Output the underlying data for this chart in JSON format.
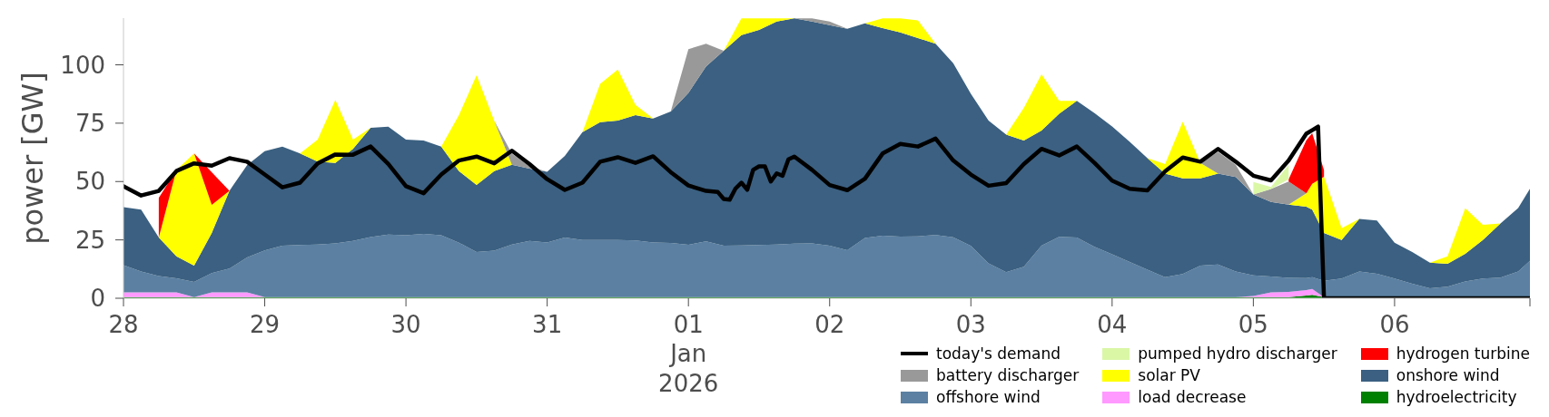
{
  "chart_data": {
    "type": "area",
    "stacked": true,
    "ylabel": "power [GW]",
    "legend": "bottom right",
    "xlim": [
      "2025-12-28T00:00",
      "2026-01-06T23:00"
    ],
    "xticks": [
      {
        "value": "2025-12-28",
        "label": "28"
      },
      {
        "value": "2025-12-29",
        "label": "29"
      },
      {
        "value": "2025-12-30",
        "label": "30"
      },
      {
        "value": "2025-12-31",
        "label": "31"
      },
      {
        "value": "2026-01-01",
        "label": "01\nJan\n2026"
      },
      {
        "value": "2026-01-02",
        "label": "02"
      },
      {
        "value": "2026-01-03",
        "label": "03"
      },
      {
        "value": "2026-01-04",
        "label": "04"
      },
      {
        "value": "2026-01-05",
        "label": "05"
      },
      {
        "value": "2026-01-06",
        "label": "06"
      },
      {
        "value": "2026-01-06T23:00",
        "label": null
      }
    ],
    "ylim": [
      0,
      120
    ],
    "yticks": [
      0,
      25,
      50,
      75,
      100
    ],
    "x": [
      "2025-12-28T00:00",
      "2025-12-28T03:00",
      "2025-12-28T06:00",
      "2025-12-28T09:00",
      "2025-12-28T12:00",
      "2025-12-28T15:00",
      "2025-12-28T18:00",
      "2025-12-28T21:00",
      "2025-12-29T00:00",
      "2025-12-29T03:00",
      "2025-12-29T06:00",
      "2025-12-29T09:00",
      "2025-12-29T12:00",
      "2025-12-29T15:00",
      "2025-12-29T18:00",
      "2025-12-29T21:00",
      "2025-12-30T00:00",
      "2025-12-30T03:00",
      "2025-12-30T06:00",
      "2025-12-30T09:00",
      "2025-12-30T12:00",
      "2025-12-30T15:00",
      "2025-12-30T18:00",
      "2025-12-30T21:00",
      "2025-12-31T00:00",
      "2025-12-31T03:00",
      "2025-12-31T06:00",
      "2025-12-31T09:00",
      "2025-12-31T12:00",
      "2025-12-31T15:00",
      "2025-12-31T18:00",
      "2025-12-31T21:00",
      "2026-01-01T00:00",
      "2026-01-01T03:00",
      "2026-01-01T06:00",
      "2026-01-01T09:00",
      "2026-01-01T12:00",
      "2026-01-01T15:00",
      "2026-01-01T18:00",
      "2026-01-01T21:00",
      "2026-01-02T00:00",
      "2026-01-02T03:00",
      "2026-01-02T06:00",
      "2026-01-02T09:00",
      "2026-01-02T12:00",
      "2026-01-02T15:00",
      "2026-01-02T18:00",
      "2026-01-02T21:00",
      "2026-01-03T00:00",
      "2026-01-03T03:00",
      "2026-01-03T06:00",
      "2026-01-03T09:00",
      "2026-01-03T12:00",
      "2026-01-03T15:00",
      "2026-01-03T18:00",
      "2026-01-03T21:00",
      "2026-01-04T00:00",
      "2026-01-04T03:00",
      "2026-01-04T06:00",
      "2026-01-04T09:00",
      "2026-01-04T12:00",
      "2026-01-04T15:00",
      "2026-01-04T18:00",
      "2026-01-04T21:00",
      "2026-01-05T00:00",
      "2026-01-05T03:00",
      "2026-01-05T06:00",
      "2026-01-05T09:00",
      "2026-01-05T10:00",
      "2026-01-05T12:00",
      "2026-01-05T15:00",
      "2026-01-05T18:00",
      "2026-01-05T21:00",
      "2026-01-06T00:00",
      "2026-01-06T03:00",
      "2026-01-06T06:00",
      "2026-01-06T09:00",
      "2026-01-06T12:00",
      "2026-01-06T15:00",
      "2026-01-06T18:00",
      "2026-01-06T21:00",
      "2026-01-06T23:00"
    ],
    "series": [
      {
        "name": "hydroelectricity",
        "color": "#008000",
        "values": [
          0.5,
          0.5,
          0.5,
          0.5,
          0.5,
          0.5,
          0.5,
          0.5,
          0.5,
          0.5,
          0.5,
          0.5,
          0.5,
          0.5,
          0.5,
          0.5,
          0.5,
          0.5,
          0.5,
          0.5,
          0.5,
          0.5,
          0.5,
          0.5,
          0.5,
          0.5,
          0.5,
          0.5,
          0.5,
          0.5,
          0.5,
          0.5,
          0.5,
          0.5,
          0.5,
          0.5,
          0.5,
          0.5,
          0.5,
          0.5,
          0.5,
          0.5,
          0.5,
          0.5,
          0.5,
          0.5,
          0.5,
          0.5,
          0.5,
          0.5,
          0.5,
          0.5,
          0.5,
          0.5,
          0.5,
          0.5,
          0.5,
          0.5,
          0.5,
          0.5,
          0.5,
          0.5,
          0.5,
          0.5,
          0.5,
          0.5,
          0.5,
          1.2,
          1.5,
          0.5,
          0.5,
          0.5,
          0.5,
          0.5,
          0.5,
          0.5,
          0.5,
          0.5,
          0.5,
          0.5,
          0.5,
          0.5
        ]
      },
      {
        "name": "load decrease",
        "color": "#ff99ff",
        "values": [
          2,
          2,
          2,
          2,
          0,
          2,
          2,
          2,
          0,
          0,
          0,
          0,
          0,
          0,
          0,
          0,
          0,
          0,
          0,
          0,
          0,
          0,
          0,
          0,
          0,
          0,
          0,
          0,
          0,
          0,
          0,
          0,
          0,
          0,
          0,
          0,
          0,
          0,
          0,
          0,
          0,
          0,
          0,
          0,
          0,
          0,
          0,
          0,
          0,
          0,
          0,
          0,
          0,
          0,
          0,
          0,
          0,
          0,
          0,
          0,
          0,
          0,
          0,
          0,
          0.5,
          2,
          2.2,
          2.3,
          2.5,
          0,
          0,
          0,
          0,
          0,
          0,
          0,
          0,
          0,
          0,
          0,
          0,
          0
        ]
      },
      {
        "name": "offshore wind",
        "color": "#5b80a2",
        "values": [
          11.7,
          9,
          7,
          6,
          6.5,
          8.3,
          10.2,
          15,
          20,
          22,
          22.3,
          22.5,
          23,
          24.1,
          25.7,
          26.8,
          26.5,
          27.1,
          26.5,
          23.3,
          19.3,
          19.9,
          22.5,
          24.1,
          23.4,
          25.5,
          24.5,
          24.5,
          24.5,
          24.3,
          23.4,
          23.2,
          22.4,
          23.9,
          22,
          22.1,
          22.3,
          22.5,
          22.9,
          23,
          22,
          20.1,
          25.3,
          26.3,
          25.9,
          26,
          26.6,
          25.6,
          21.9,
          14.5,
          10.7,
          13,
          22,
          25.8,
          25.5,
          21.5,
          18.3,
          15,
          11.7,
          8.5,
          9.9,
          13.5,
          14,
          11,
          8.8,
          6.8,
          6,
          5.1,
          5,
          7,
          7.9,
          11,
          10,
          7.9,
          5.7,
          3.8,
          4.5,
          6.7,
          7.9,
          8.3,
          11,
          15.5
        ]
      },
      {
        "name": "onshore wind",
        "color": "#3b6081",
        "values": [
          24.8,
          26.5,
          16.5,
          9.5,
          7,
          17.2,
          33.3,
          39.5,
          42.5,
          42.5,
          39.2,
          35.5,
          34.5,
          39.4,
          46.8,
          46.2,
          41,
          40,
          38,
          30.7,
          28.7,
          34.1,
          34.2,
          30.9,
          30.3,
          35,
          46.2,
          50.4,
          51.1,
          53.6,
          53.1,
          56.3,
          65.1,
          74.9,
          83.5,
          90.1,
          92.2,
          95.5,
          96.5,
          95,
          94.5,
          94.8,
          92,
          88.9,
          87.5,
          85,
          81.9,
          74.6,
          65.2,
          61.1,
          58.9,
          54.1,
          49.3,
          52.7,
          58.6,
          57.3,
          54.8,
          51.5,
          47.8,
          44.4,
          41,
          37.4,
          38.9,
          40.4,
          34.7,
          32,
          31.4,
          30.6,
          29,
          20.5,
          16.6,
          22.5,
          22.8,
          15.4,
          13.6,
          10.9,
          9.8,
          11.8,
          16.6,
          23.2,
          27.1,
          30.9
        ]
      },
      {
        "name": "solar PV",
        "color": "#ffff00",
        "values": [
          0,
          0,
          0,
          37,
          48,
          12,
          0,
          0,
          0,
          0,
          0,
          9.5,
          27,
          4,
          0,
          0,
          0,
          0,
          0,
          23.9,
          47,
          21.5,
          0,
          0,
          0,
          0,
          0,
          16.4,
          21.9,
          4.4,
          0,
          0,
          0,
          0,
          0,
          7.2,
          4.9,
          1.4,
          0,
          0,
          0,
          0,
          0,
          4.2,
          6,
          7.5,
          0,
          0,
          0,
          0,
          0,
          14,
          24.1,
          5.6,
          0,
          0,
          0,
          0,
          0,
          4.1,
          24.2,
          6.6,
          0,
          0,
          0,
          0,
          0,
          5.8,
          11,
          24,
          5,
          0,
          0,
          0,
          0,
          0,
          3.2,
          19.5,
          6.5,
          0,
          0,
          0
        ]
      },
      {
        "name": "battery discharger",
        "color": "#999999",
        "values": [
          0,
          0,
          0,
          0,
          0,
          0,
          0,
          0,
          0,
          0,
          0,
          0,
          0,
          0,
          0,
          0,
          0,
          0,
          0,
          0,
          0,
          0,
          4.7,
          1,
          0,
          0,
          0,
          0,
          0,
          0,
          0,
          0,
          18.7,
          9.7,
          0,
          0,
          0,
          0,
          0,
          1.4,
          1.5,
          0,
          0,
          0,
          0,
          0,
          0,
          0,
          0,
          0,
          0,
          0,
          0,
          0,
          0,
          0,
          0,
          0,
          0,
          0,
          0,
          0,
          9.3,
          5.3,
          0,
          5.5,
          9.9,
          0,
          0,
          0,
          0,
          0,
          0,
          0,
          0,
          0,
          0,
          0,
          0,
          0,
          0,
          0
        ]
      },
      {
        "name": "hydrogen turbine",
        "color": "#ff0000",
        "values": [
          null,
          null,
          17,
          0,
          0,
          14,
          0,
          null,
          null,
          null,
          null,
          null,
          null,
          null,
          null,
          null,
          null,
          null,
          null,
          null,
          null,
          null,
          null,
          null,
          null,
          null,
          null,
          null,
          null,
          null,
          null,
          null,
          null,
          null,
          null,
          null,
          null,
          null,
          null,
          null,
          null,
          null,
          null,
          null,
          null,
          null,
          null,
          null,
          null,
          null,
          null,
          null,
          null,
          null,
          null,
          null,
          null,
          null,
          null,
          null,
          null,
          null,
          null,
          null,
          null,
          null,
          1,
          22.7,
          21.7,
          3,
          null,
          null,
          null,
          null,
          null,
          null,
          null,
          null,
          null,
          null,
          null,
          null
        ]
      },
      {
        "name": "pumped hydro discharger",
        "color": "#daf7a6",
        "values": [
          null,
          null,
          null,
          null,
          null,
          null,
          null,
          null,
          null,
          null,
          null,
          null,
          null,
          null,
          null,
          null,
          null,
          null,
          null,
          null,
          null,
          null,
          null,
          null,
          null,
          null,
          null,
          null,
          null,
          null,
          null,
          null,
          null,
          null,
          null,
          null,
          null,
          null,
          null,
          null,
          null,
          null,
          null,
          null,
          null,
          null,
          null,
          null,
          null,
          null,
          null,
          null,
          null,
          null,
          null,
          null,
          null,
          null,
          null,
          null,
          null,
          null,
          null,
          null,
          5.3,
          0.9,
          6.2,
          null,
          null,
          null,
          null,
          null,
          null,
          null,
          null,
          null,
          null,
          null,
          null,
          null,
          null,
          null
        ]
      },
      {
        "name": "today's demand",
        "type": "line",
        "color": "#000000",
        "x": [
          "2025-12-28T00:00",
          "2025-12-28T03:00",
          "2025-12-28T06:00",
          "2025-12-28T09:00",
          "2025-12-28T12:00",
          "2025-12-28T15:00",
          "2025-12-28T18:00",
          "2025-12-28T21:00",
          "2025-12-29T00:00",
          "2025-12-29T03:00",
          "2025-12-29T06:00",
          "2025-12-29T09:00",
          "2025-12-29T12:00",
          "2025-12-29T15:00",
          "2025-12-29T18:00",
          "2025-12-29T21:00",
          "2025-12-30T00:00",
          "2025-12-30T03:00",
          "2025-12-30T06:00",
          "2025-12-30T09:00",
          "2025-12-30T12:00",
          "2025-12-30T15:00",
          "2025-12-30T18:00",
          "2025-12-30T21:00",
          "2025-12-31T00:00",
          "2025-12-31T03:00",
          "2025-12-31T06:00",
          "2025-12-31T09:00",
          "2025-12-31T12:00",
          "2025-12-31T15:00",
          "2025-12-31T18:00",
          "2025-12-31T21:00",
          "2026-01-01T00:00",
          "2026-01-01T03:00",
          "2026-01-01T05:00",
          "2026-01-01T06:00",
          "2026-01-01T07:00",
          "2026-01-01T08:00",
          "2026-01-01T09:00",
          "2026-01-01T10:00",
          "2026-01-01T11:00",
          "2026-01-01T12:00",
          "2026-01-01T13:00",
          "2026-01-01T14:00",
          "2026-01-01T15:00",
          "2026-01-01T16:00",
          "2026-01-01T17:00",
          "2026-01-01T18:00",
          "2026-01-01T21:00",
          "2026-01-02T00:00",
          "2026-01-02T03:00",
          "2026-01-02T06:00",
          "2026-01-02T09:00",
          "2026-01-02T12:00",
          "2026-01-02T15:00",
          "2026-01-02T18:00",
          "2026-01-02T21:00",
          "2026-01-03T00:00",
          "2026-01-03T03:00",
          "2026-01-03T06:00",
          "2026-01-03T09:00",
          "2026-01-03T12:00",
          "2026-01-03T15:00",
          "2026-01-03T18:00",
          "2026-01-03T21:00",
          "2026-01-04T00:00",
          "2026-01-04T03:00",
          "2026-01-04T06:00",
          "2026-01-04T09:00",
          "2026-01-04T12:00",
          "2026-01-04T15:00",
          "2026-01-04T18:00",
          "2026-01-04T21:00",
          "2026-01-05T00:00",
          "2026-01-05T03:00",
          "2026-01-05T06:00",
          "2026-01-05T09:00",
          "2026-01-05T10:00",
          "2026-01-05T11:00",
          "2026-01-05T12:00",
          "2026-01-06T23:00"
        ],
        "values": [
          48,
          44,
          46,
          54.5,
          57.8,
          56.8,
          60,
          58.5,
          53,
          47.5,
          49.5,
          57.8,
          61.6,
          61.5,
          65,
          57.5,
          48,
          45,
          53,
          59,
          60.7,
          57.8,
          63.2,
          57.5,
          51,
          46.4,
          49.5,
          58.5,
          60.4,
          58,
          60.8,
          54,
          48.3,
          46,
          45.5,
          42.5,
          42.2,
          47,
          49.5,
          46.5,
          55,
          56.5,
          56.5,
          50,
          53.5,
          52.5,
          59.5,
          60.7,
          55,
          48.5,
          46.3,
          51.2,
          62,
          66.1,
          65,
          68.4,
          59,
          53,
          48.2,
          49.3,
          57.5,
          64,
          61.2,
          65,
          58,
          50.4,
          46.9,
          46.2,
          54.4,
          60.3,
          58.5,
          64,
          58.5,
          52.5,
          50.5,
          59,
          70.5,
          72,
          73.5,
          0,
          0
        ]
      }
    ]
  }
}
